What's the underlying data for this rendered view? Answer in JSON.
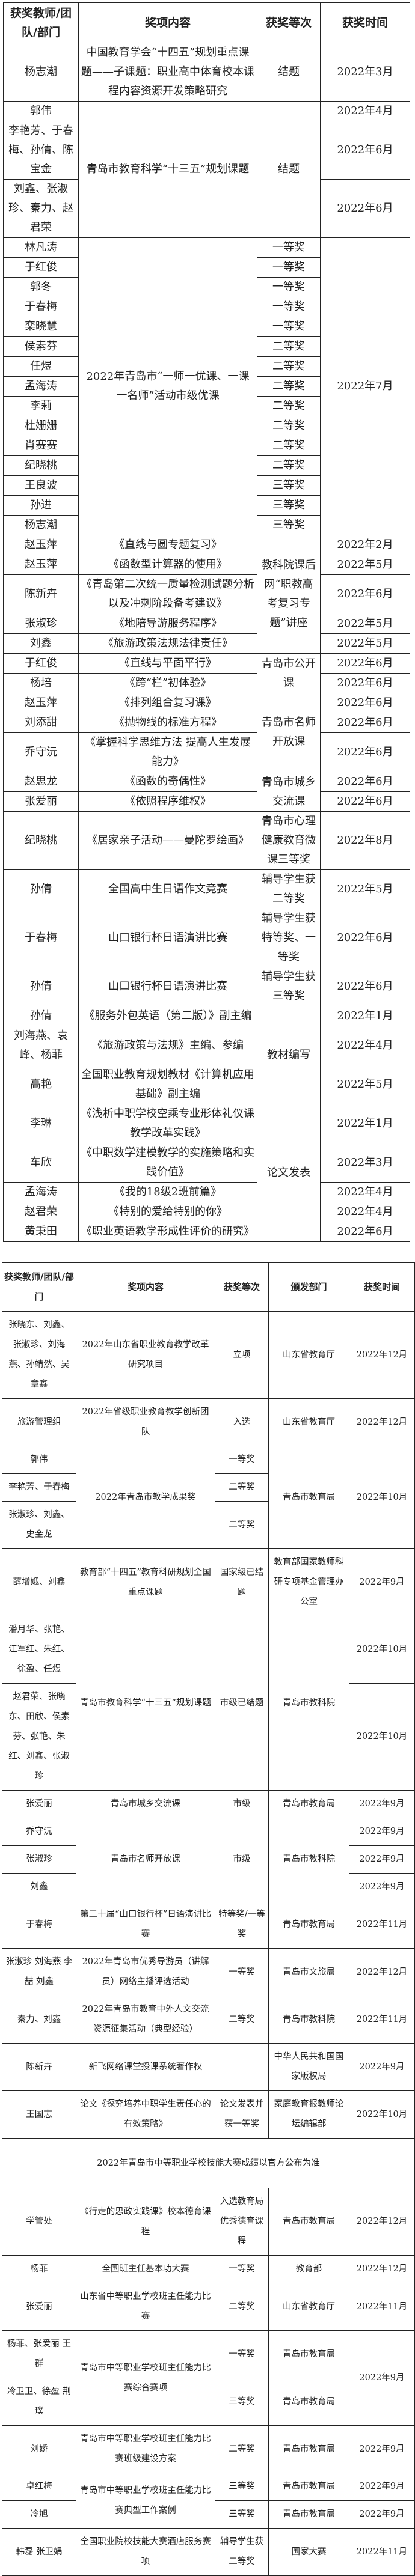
{
  "tables": [
    {
      "headers": [
        "获奖教师/团队/部门",
        "奖项内容",
        "获奖等次",
        "获奖时间"
      ],
      "rows": [
        [
          "杨志潮",
          "中国教育学会“十四五”规划重点课题——子课题：职业高中体育校本课程内容资源开发策略研究",
          "结题",
          "2022年3月"
        ],
        [
          "郭伟",
          "青岛市教育科学“十三五”规划课题",
          "结题",
          "2022年4月"
        ],
        [
          "李艳芳、于春梅、孙倩、陈宝金",
          null,
          null,
          "2022年6月"
        ],
        [
          "刘鑫、张淑珍、秦力、赵君荣",
          null,
          null,
          "2022年6月"
        ],
        [
          "林凡涛",
          "2022年青岛市“一师一优课、一课一名师”活动市级优课",
          "一等奖",
          "2022年7月"
        ],
        [
          "于红俊",
          null,
          "一等奖",
          null
        ],
        [
          "郭冬",
          null,
          "一等奖",
          null
        ],
        [
          "于春梅",
          null,
          "一等奖",
          null
        ],
        [
          "栾晓慧",
          null,
          "一等奖",
          null
        ],
        [
          "侯素芬",
          null,
          "二等奖",
          null
        ],
        [
          "任煜",
          null,
          "二等奖",
          null
        ],
        [
          "孟海涛",
          null,
          "二等奖",
          null
        ],
        [
          "李莉",
          null,
          "二等奖",
          null
        ],
        [
          "杜姗姗",
          null,
          "二等奖",
          null
        ],
        [
          "肖赛赛",
          null,
          "二等奖",
          null
        ],
        [
          "纪晓桃",
          null,
          "二等奖",
          null
        ],
        [
          "王良波",
          null,
          "三等奖",
          null
        ],
        [
          "孙进",
          null,
          "三等奖",
          null
        ],
        [
          "杨志潮",
          null,
          "三等奖",
          null
        ],
        [
          "赵玉萍",
          "《直线与圆专题复习》",
          "教科院课后网“职教高考复习专题”讲座",
          "2022年2月"
        ],
        [
          "赵玉萍",
          "《函数型计算器的使用》",
          null,
          "2022年5月"
        ],
        [
          "陈新卉",
          "《青岛第二次统一质量检测试题分析以及冲刺阶段备考建议》",
          null,
          "2022年6月"
        ],
        [
          "张淑珍",
          "《地陪导游服务程序》",
          null,
          "2022年5月"
        ],
        [
          "刘鑫",
          "《旅游政策法规法律责任》",
          null,
          "2022年5月"
        ],
        [
          "于红俊",
          "《直线与平面平行》",
          "青岛市公开课",
          "2022年6月"
        ],
        [
          "杨培",
          "《跨“栏”初体验》",
          null,
          "2022年6月"
        ],
        [
          "赵玉萍",
          "《排列组合复习课》",
          "青岛市名师开放课",
          "2022年6月"
        ],
        [
          "刘添甜",
          "《抛物线的标准方程》",
          null,
          "2022年6月"
        ],
        [
          "乔守沅",
          "《掌握科学思维方法 提高人生发展能力》",
          null,
          "2022年6月"
        ],
        [
          "赵思龙",
          "《函数的奇偶性》",
          "青岛市城乡交流课",
          "2022年6月"
        ],
        [
          "张爱丽",
          "《依照程序维权》",
          null,
          "2022年6月"
        ],
        [
          "纪晓桃",
          "《居家亲子活动——曼陀罗绘画》",
          "青岛市心理健康教育微课三等奖",
          "2022年8月"
        ],
        [
          "孙倩",
          "全国高中生日语作文竞赛",
          "辅导学生获二等奖",
          "2022年5月"
        ],
        [
          "于春梅",
          "山口银行杯日语演讲比赛",
          "辅导学生获特等奖、一等奖",
          "2022年6月"
        ],
        [
          "孙倩",
          "山口银行杯日语演讲比赛",
          "辅导学生获三等奖",
          "2022年6月"
        ],
        [
          "孙倩",
          "《服务外包英语（第二版）》副主编",
          "教材编写",
          "2022年1月"
        ],
        [
          "刘海燕、袁峰、杨菲",
          "《旅游政策与法规》主编、参编",
          null,
          "2022年4月"
        ],
        [
          "高艳",
          "全国职业教育规划教材《计算机应用基础》副主编",
          null,
          "2022年5月"
        ],
        [
          "李琳",
          "《浅析中职学校空乘专业形体礼仪课教学改革实践》",
          "论文发表",
          "2022年1月"
        ],
        [
          "车欣",
          "《中职数学建模教学的实施策略和实践价值》",
          null,
          "2022年3月"
        ],
        [
          "孟海涛",
          "《我的18级2班前篇》",
          null,
          "2022年4月"
        ],
        [
          "赵君荣",
          "《特别的爱给特别的你》",
          null,
          "2022年4月"
        ],
        [
          "黄秉田",
          "《职业英语教学形成性评价的研究》",
          null,
          "2022年6月"
        ]
      ]
    },
    {
      "headers": [
        "获奖教师/团队/部门",
        "奖项内容",
        "获奖等次",
        "颁发部门",
        "获奖时间"
      ],
      "rows": [
        [
          "张晓东、刘鑫、张淑珍、刘海燕、孙靖然、吴章鑫",
          "2022年山东省职业教育教学改革研究项目",
          "立项",
          "山东省教育厅",
          "2022年12月"
        ],
        [
          "旅游管理组",
          "2022年省级职业教育教学创新团队",
          "入选",
          "山东省教育厅",
          "2022年12月"
        ],
        [
          "郭伟",
          "2022年青岛市教学成果奖",
          "一等奖",
          "青岛市教育局",
          "2022年10月"
        ],
        [
          "李艳芳、于春梅",
          null,
          "二等奖",
          null,
          null
        ],
        [
          "张淑珍、刘鑫、史金龙",
          null,
          "二等奖",
          null,
          null
        ],
        [
          "薛增娥、刘鑫",
          "教育部“十四五”教育科研规划全国重点课题",
          "国家级已结题",
          "教育部国家教师科研专项基金管理办公室",
          "2022年9月"
        ],
        [
          "潘月华、张艳、江军红、朱红、徐盈、任煜",
          "青岛市教育科学“十三五”规划课题",
          "市级已结题",
          "青岛市教科院",
          "2022年10月"
        ],
        [
          "赵君荣、张晓东、田欣、侯素芬、张艳、朱红、刘鑫、张淑珍",
          null,
          null,
          null,
          "2022年10月"
        ],
        [
          "张爱丽",
          "青岛市城乡交流课",
          "市级",
          "青岛市教育局",
          "2022年9月"
        ],
        [
          "乔守沅",
          "青岛市名师开放课",
          "市级",
          "青岛市教科院",
          "2022年9月"
        ],
        [
          "张淑珍",
          null,
          null,
          null,
          "2022年9月"
        ],
        [
          "刘鑫",
          null,
          null,
          null,
          "2022年9月"
        ],
        [
          "于春梅",
          "第二十届“山口银行杯”日语演讲比赛",
          "特等奖/一等奖",
          "青岛市教育局",
          "2022年11月"
        ],
        [
          "张淑珍 刘海燕 李喆 刘鑫",
          "2022年青岛市优秀导游员（讲解员）网络主播评选活动",
          "一等奖",
          "青岛市文旅局",
          "2022年12月"
        ],
        [
          "秦力、刘鑫",
          "2022年青岛市教育中外人文交流资源征集活动（典型经验）",
          "二等奖",
          "青岛市教科院",
          "2022年11月"
        ],
        [
          "陈新卉",
          "新飞网络课堂授课系统著作权",
          "",
          "中华人民共和国国家版权局",
          "2022年9月"
        ],
        [
          "王国志",
          "论文《探究培养中职学生责任心的有效策略》",
          "论文发表并获一等奖",
          "家庭教育报教师论坛编辑部",
          "2022年10月"
        ],
        {
          "note": "2022年青岛市中等职业学校技能大赛成绩以官方公布为准"
        },
        [
          "学管处",
          "《行走的思政实践课》校本德育课程",
          "入选教育局优秀德育课程",
          "青岛市教育局",
          "2022年12月"
        ],
        [
          "杨菲",
          "全国班主任基本功大赛",
          "一等奖",
          "教育部",
          "2022年12月"
        ],
        [
          "张爱丽",
          "山东省中等职业学校班主任能力比赛",
          "二等奖",
          "山东省教育厅",
          "2022年11月"
        ],
        [
          "杨菲、张爱丽 王群",
          "青岛市中等职业学校班主任能力比赛综合赛项",
          "一等奖",
          "青岛市教育局",
          "2022年9月"
        ],
        [
          "冷卫卫、徐盈 荆璞",
          null,
          "三等奖",
          "青岛市教育局",
          null
        ],
        [
          "刘娇",
          "青岛市中等职业学校班主任能力比赛班级建设方案",
          "二等奖",
          "青岛市教育局",
          "2022年9月"
        ],
        [
          "卓红梅",
          "青岛市中等职业学校班主任能力比赛典型工作案例",
          "三等奖",
          "青岛市教育局",
          "2022年9月"
        ],
        [
          "冷旭",
          null,
          "三等奖",
          "青岛市教育局",
          "2022年9月"
        ],
        [
          "韩磊 张卫娟",
          "全国职业院校技能大赛酒店服务赛项",
          "辅导学生获二等奖",
          "国家大赛",
          "2022年11月"
        ]
      ]
    }
  ]
}
